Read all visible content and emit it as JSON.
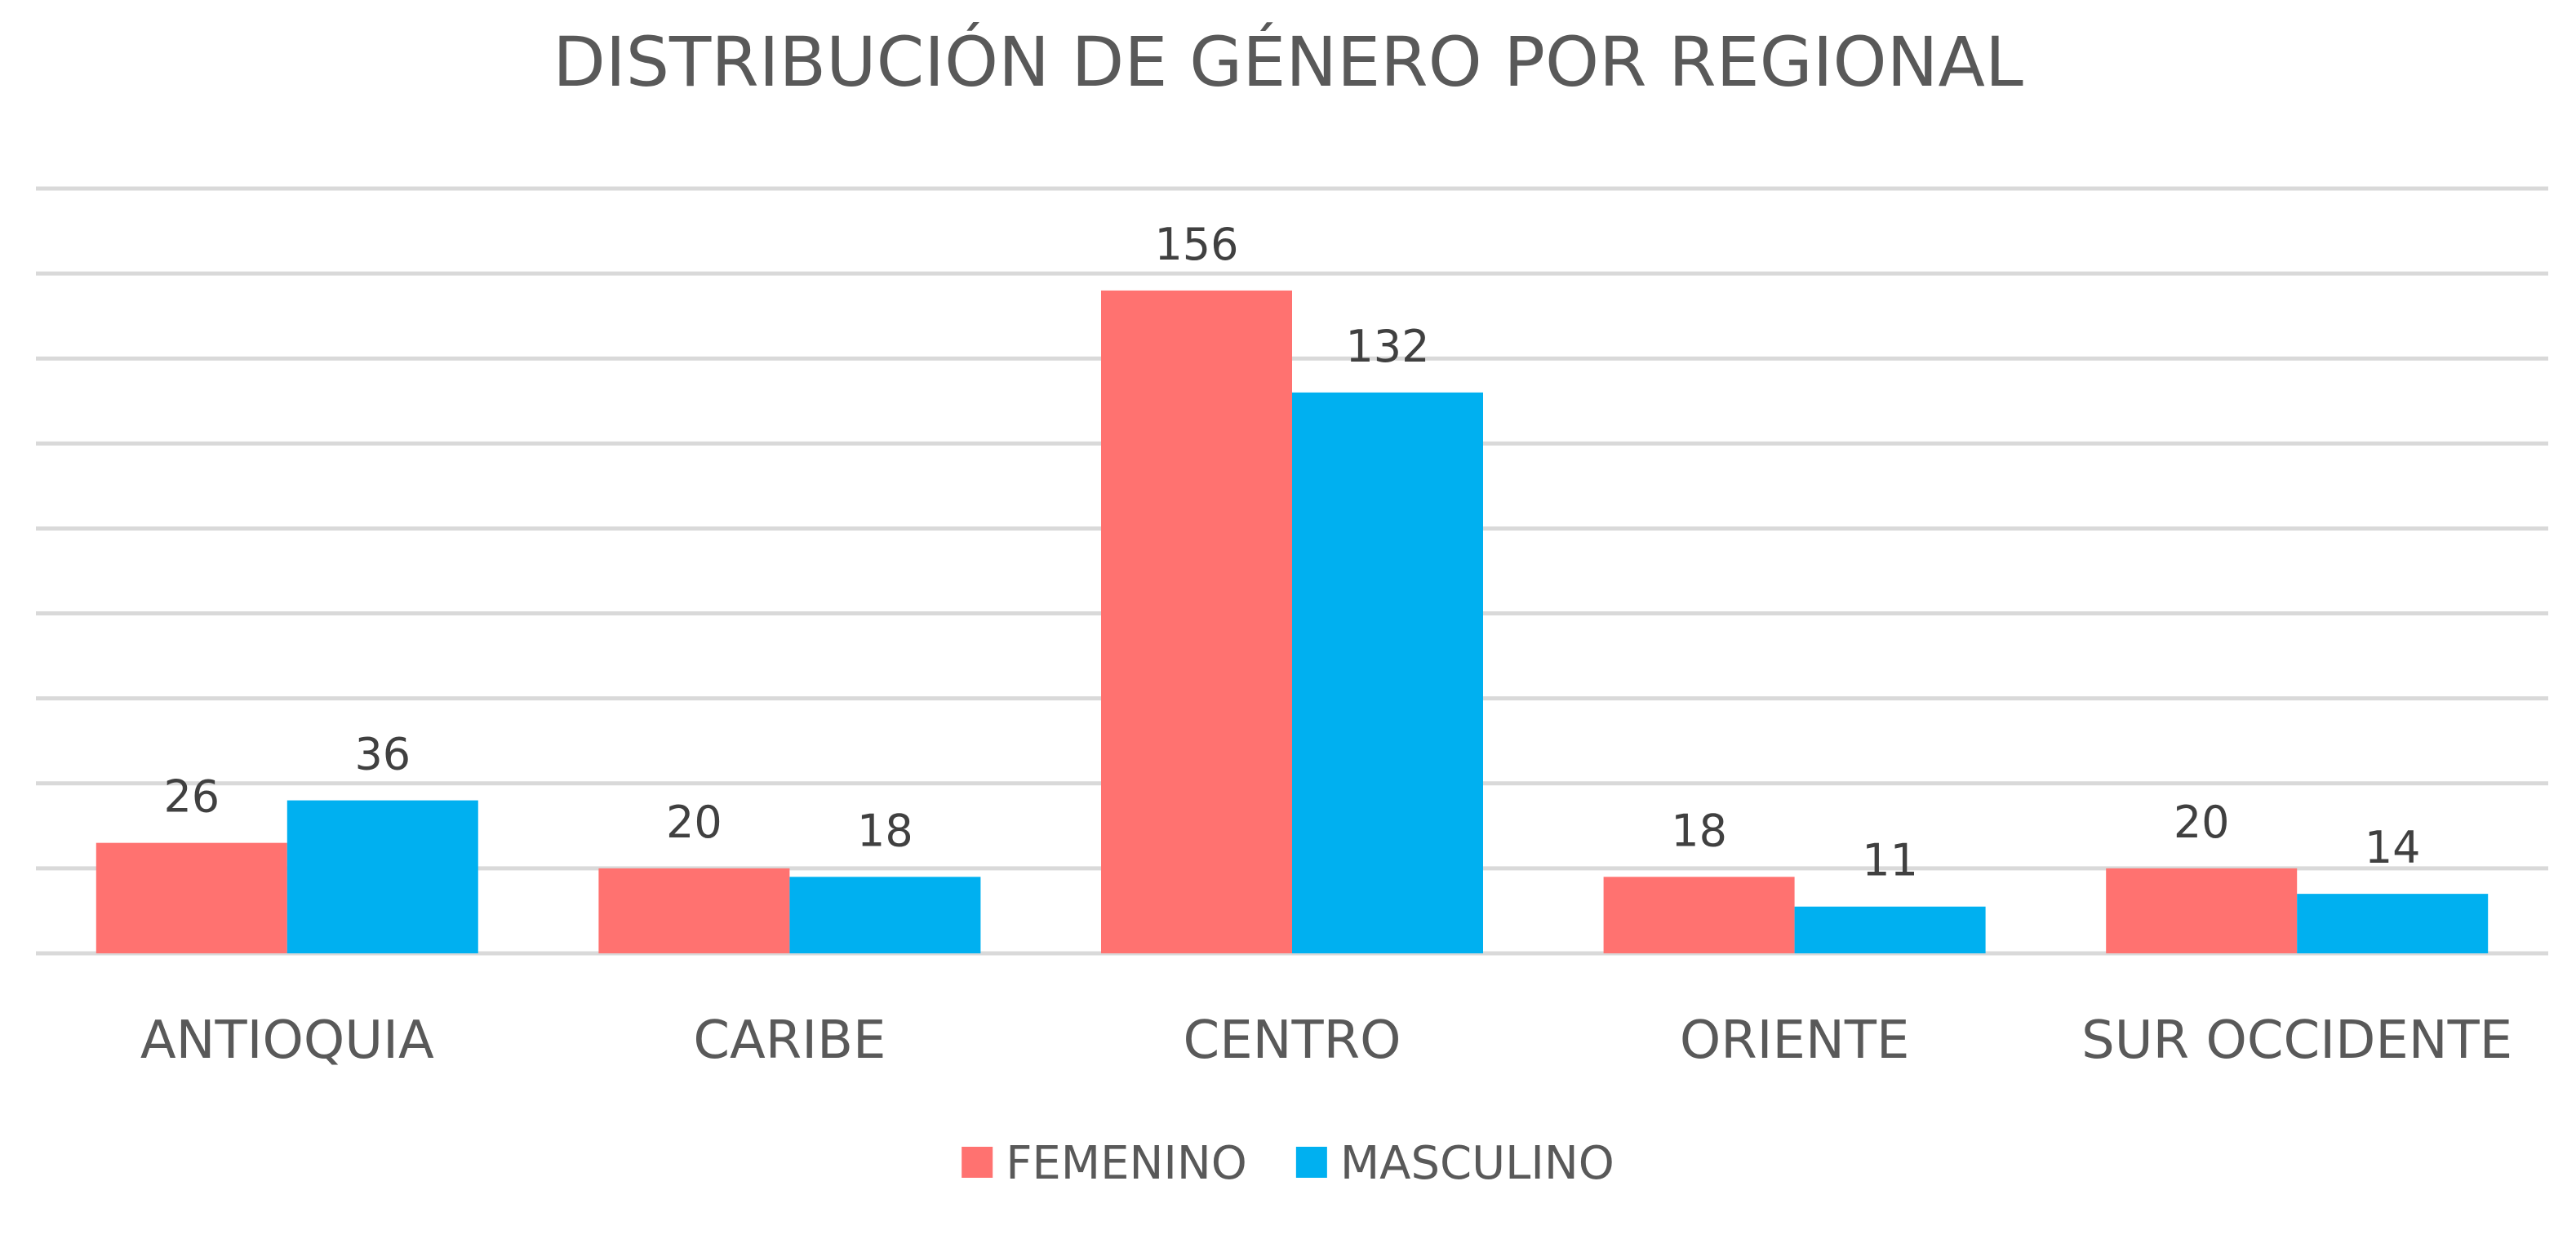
{
  "chart_data": {
    "type": "bar",
    "title": "DISTRIBUCIÓN DE GÉNERO POR REGIONAL",
    "xlabel": "",
    "ylabel": "",
    "categories": [
      "ANTIOQUIA",
      "CARIBE",
      "CENTRO",
      "ORIENTE",
      "SUR OCCIDENTE"
    ],
    "series": [
      {
        "name": "FEMENINO",
        "values": [
          26,
          20,
          156,
          18,
          20
        ],
        "color": "#FF7270"
      },
      {
        "name": "MASCULINO",
        "values": [
          36,
          18,
          132,
          11,
          14
        ],
        "color": "#00B0F0"
      }
    ],
    "ylim": [
      0,
      180
    ],
    "y_axis_visible": false,
    "grid": true,
    "data_labels": true,
    "legend_position": "bottom"
  }
}
